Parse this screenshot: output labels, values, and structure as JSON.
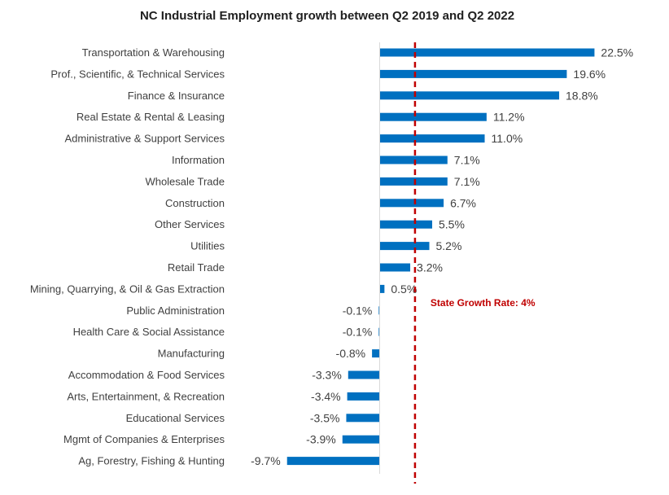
{
  "chart_data": {
    "type": "bar",
    "orientation": "horizontal",
    "title": "NC Industrial Employment growth between Q2 2019 and Q2 2022",
    "xlabel": "",
    "ylabel": "",
    "categories": [
      "Transportation & Warehousing",
      "Prof., Scientific, & Technical Services",
      "Finance & Insurance",
      "Real Estate & Rental & Leasing",
      "Administrative & Support Services",
      "Information",
      "Wholesale Trade",
      "Construction",
      "Other Services",
      "Utilities",
      "Retail Trade",
      "Mining, Quarrying, & Oil & Gas Extraction",
      "Public Administration",
      "Health Care & Social Assistance",
      "Manufacturing",
      "Accommodation & Food Services",
      "Arts, Entertainment, & Recreation",
      "Educational Services",
      "Mgmt of Companies & Enterprises",
      "Ag, Forestry, Fishing & Hunting"
    ],
    "values": [
      22.5,
      19.6,
      18.8,
      11.2,
      11.0,
      7.1,
      7.1,
      6.7,
      5.5,
      5.2,
      3.2,
      0.5,
      -0.1,
      -0.1,
      -0.8,
      -3.3,
      -3.4,
      -3.5,
      -3.9,
      -9.7
    ],
    "value_labels": [
      "22.5%",
      "19.6%",
      "18.8%",
      "11.2%",
      "11.0%",
      "7.1%",
      "7.1%",
      "6.7%",
      "5.5%",
      "5.2%",
      "3.2%",
      "0.5%",
      "-0.1%",
      "-0.1%",
      "-0.8%",
      "-3.3%",
      "-3.4%",
      "-3.5%",
      "-3.9%",
      "-9.7%"
    ],
    "reference_line": {
      "value": 4,
      "label": "State Growth Rate: 4%",
      "color": "#c00000",
      "style": "dashed"
    },
    "bar_color": "#0070c0",
    "xlim": [
      -10,
      25
    ],
    "grid": false,
    "legend": "none"
  }
}
